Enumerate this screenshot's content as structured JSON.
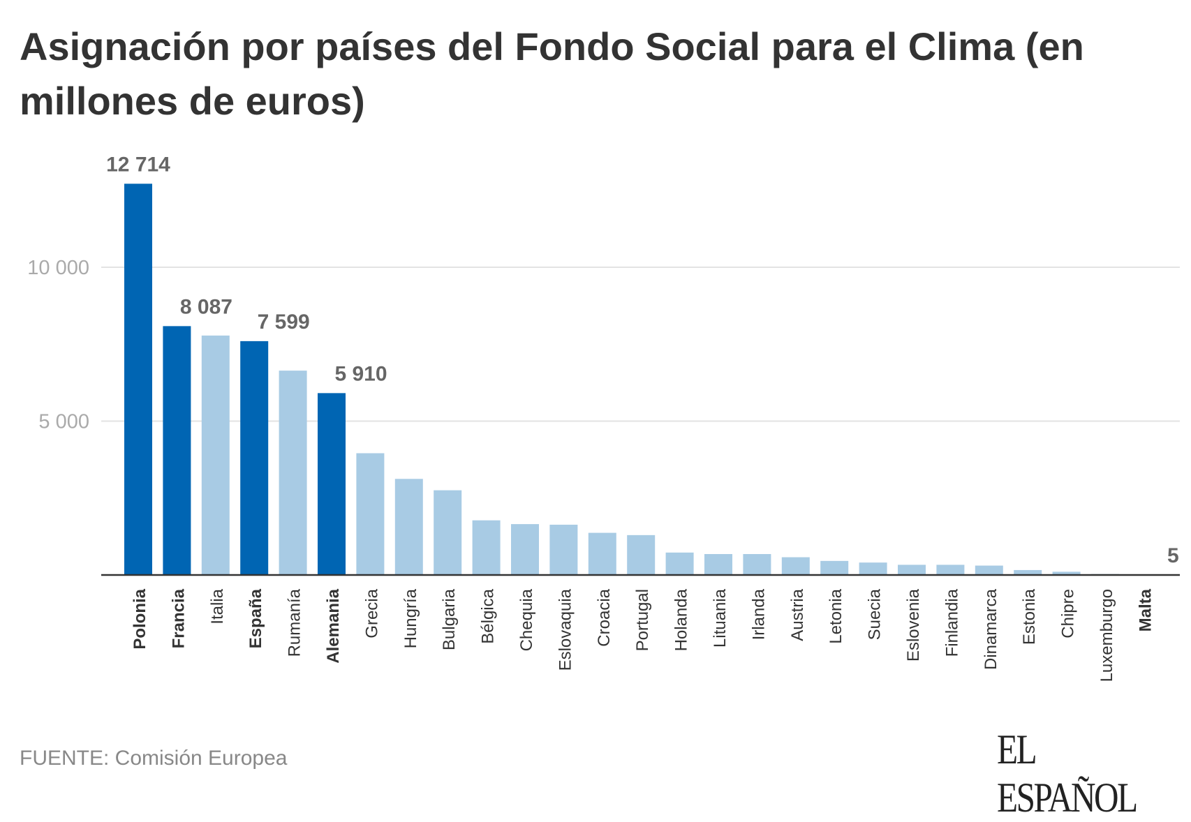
{
  "title": "Asignación por países del Fondo Social para el Clima (en millones de euros)",
  "source": "FUENTE: Comisión Europea",
  "logo": "EL ESPAÑOL",
  "colors": {
    "highlight": "#0065b3",
    "default": "#a8cbe4",
    "grid": "#e3e3e3",
    "axis": "#333333"
  },
  "chart_data": {
    "type": "bar",
    "title": "Asignación por países del Fondo Social para el Clima (en millones de euros)",
    "categories": [
      "Polonia",
      "Francia",
      "Italia",
      "España",
      "Rumanía",
      "Alemania",
      "Grecia",
      "Hungría",
      "Bulgaria",
      "Bélgica",
      "Chequia",
      "Eslovaquia",
      "Croacia",
      "Portugal",
      "Holanda",
      "Lituania",
      "Irlanda",
      "Austria",
      "Letonia",
      "Suecia",
      "Eslovenia",
      "Finlandia",
      "Dinamarca",
      "Estonia",
      "Chipre",
      "Luxemburgo",
      "Malta"
    ],
    "values": [
      12714,
      8087,
      7781,
      7599,
      6641,
      5910,
      3957,
      3123,
      2753,
      1776,
      1653,
      1634,
      1370,
      1296,
      729,
      680,
      680,
      577,
      457,
      404,
      331,
      331,
      305,
      160,
      105,
      30,
      5
    ],
    "highlighted": [
      "Polonia",
      "Francia",
      "España",
      "Alemania",
      "Malta"
    ],
    "data_labels": {
      "Polonia": "12 714",
      "Francia": "8 087",
      "España": "7 599",
      "Alemania": "5 910",
      "Malta": "5"
    },
    "yticks": [
      {
        "value": 5000,
        "label": "5 000"
      },
      {
        "value": 10000,
        "label": "10 000"
      }
    ],
    "ylim": [
      0,
      13000
    ],
    "grid": true,
    "xlabel": "",
    "ylabel": ""
  }
}
